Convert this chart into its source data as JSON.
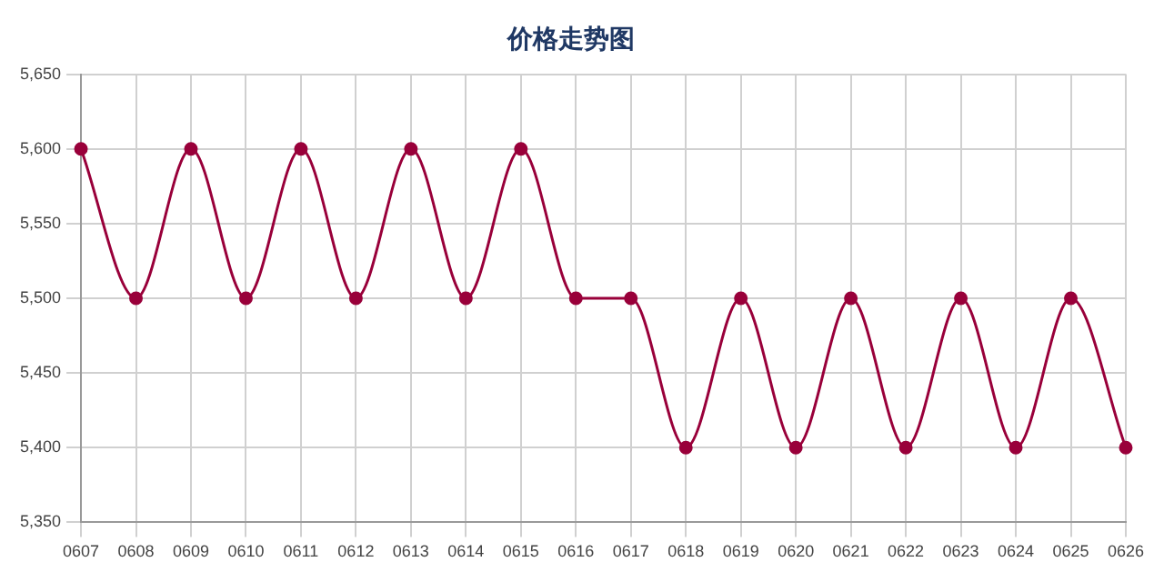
{
  "chart_data": {
    "type": "line",
    "title": "价格走势图",
    "categories": [
      "0607",
      "0608",
      "0609",
      "0610",
      "0611",
      "0612",
      "0613",
      "0614",
      "0615",
      "0616",
      "0617",
      "0618",
      "0619",
      "0620",
      "0621",
      "0622",
      "0623",
      "0624",
      "0625",
      "0626"
    ],
    "series": [
      {
        "color": "#99003a",
        "values": [
          5600,
          5500,
          5600,
          5500,
          5600,
          5500,
          5600,
          5500,
          5600,
          5500,
          5500,
          5400,
          5500,
          5400,
          5500,
          5400,
          5500,
          5400,
          5500,
          5400
        ]
      }
    ],
    "ylim": [
      5350,
      5650
    ],
    "yticks": [
      {
        "value": 5350,
        "label": "5,350"
      },
      {
        "value": 5400,
        "label": "5,400"
      },
      {
        "value": 5450,
        "label": "5,450"
      },
      {
        "value": 5500,
        "label": "5,500"
      },
      {
        "value": 5550,
        "label": "5,550"
      },
      {
        "value": 5600,
        "label": "5,600"
      },
      {
        "value": 5650,
        "label": "5,650"
      }
    ],
    "grid": true,
    "legend": false,
    "marker": "circle",
    "line_style": "solid"
  }
}
